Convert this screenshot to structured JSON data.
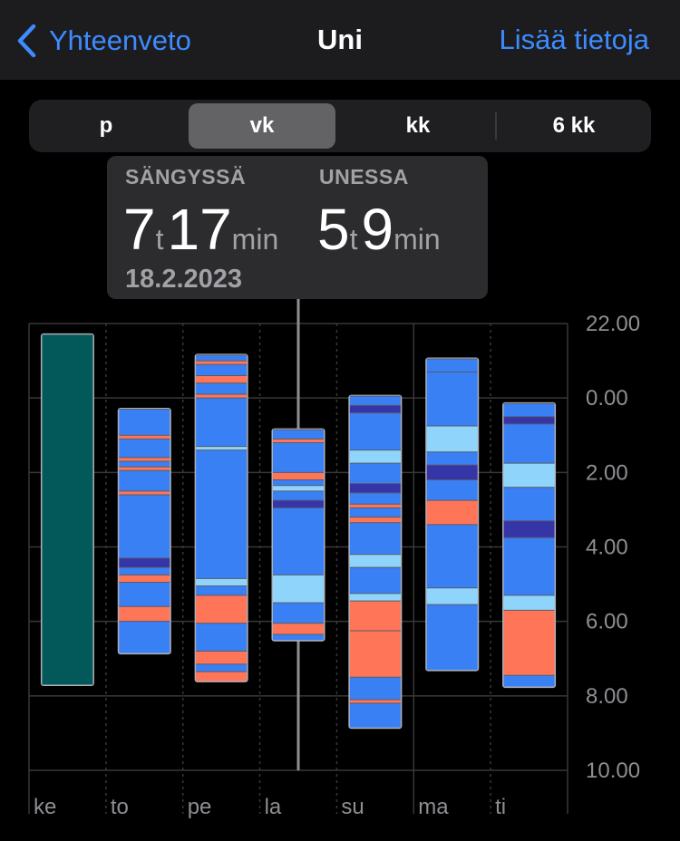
{
  "nav": {
    "back_label": "Yhteenveto",
    "title": "Uni",
    "action_label": "Lisää tietoja"
  },
  "segments": [
    {
      "label": "p",
      "active": false
    },
    {
      "label": "vk",
      "active": true
    },
    {
      "label": "kk",
      "active": false
    },
    {
      "label": "6 kk",
      "active": false
    }
  ],
  "tooltip": {
    "in_bed_label": "SÄNGYSSÄ",
    "in_bed_hours": "7",
    "in_bed_minutes": "17",
    "asleep_label": "UNESSA",
    "asleep_hours": "5",
    "asleep_minutes": "9",
    "hour_unit": "t",
    "minute_unit": "min",
    "date": "18.2.2023"
  },
  "colors": {
    "in_bed": "#03585a",
    "core": "#3a80f5",
    "rem": "#8fd5fb",
    "deep": "#3535a8",
    "awake": "#ff7558",
    "grid": "#38383a",
    "accent": "#3d8bff"
  },
  "chart_data": {
    "type": "range-bar",
    "x_categories": [
      "ke",
      "to",
      "pe",
      "la",
      "su",
      "ma",
      "ti"
    ],
    "y_tick_labels": [
      "22.00",
      "0.00",
      "2.00",
      "4.00",
      "6.00",
      "8.00",
      "10.00"
    ],
    "y_unit": "hours since 22.00",
    "ylim": [
      0,
      12
    ],
    "selected_category": "la",
    "series": [
      {
        "day": "ke",
        "start": 0.3,
        "end": 9.7,
        "stages": [
          {
            "from": 0.3,
            "to": 9.7,
            "stage": "in_bed"
          }
        ]
      },
      {
        "day": "to",
        "start": 2.3,
        "end": 8.85,
        "stages": [
          {
            "from": 2.3,
            "to": 3.0,
            "stage": "core"
          },
          {
            "from": 3.0,
            "to": 3.1,
            "stage": "awake"
          },
          {
            "from": 3.1,
            "to": 3.6,
            "stage": "core"
          },
          {
            "from": 3.6,
            "to": 3.7,
            "stage": "awake"
          },
          {
            "from": 3.7,
            "to": 3.85,
            "stage": "core"
          },
          {
            "from": 3.85,
            "to": 3.95,
            "stage": "awake"
          },
          {
            "from": 3.95,
            "to": 4.5,
            "stage": "core"
          },
          {
            "from": 4.5,
            "to": 4.6,
            "stage": "awake"
          },
          {
            "from": 4.6,
            "to": 6.3,
            "stage": "core"
          },
          {
            "from": 6.3,
            "to": 6.55,
            "stage": "deep"
          },
          {
            "from": 6.55,
            "to": 6.75,
            "stage": "core"
          },
          {
            "from": 6.75,
            "to": 6.95,
            "stage": "awake"
          },
          {
            "from": 6.95,
            "to": 7.6,
            "stage": "core"
          },
          {
            "from": 7.6,
            "to": 8.0,
            "stage": "awake"
          },
          {
            "from": 8.0,
            "to": 8.85,
            "stage": "core"
          }
        ]
      },
      {
        "day": "pe",
        "start": 0.85,
        "end": 9.6,
        "stages": [
          {
            "from": 0.85,
            "to": 1.0,
            "stage": "core"
          },
          {
            "from": 1.0,
            "to": 1.1,
            "stage": "awake"
          },
          {
            "from": 1.1,
            "to": 1.4,
            "stage": "core"
          },
          {
            "from": 1.4,
            "to": 1.6,
            "stage": "awake"
          },
          {
            "from": 1.6,
            "to": 1.9,
            "stage": "core"
          },
          {
            "from": 1.9,
            "to": 2.0,
            "stage": "awake"
          },
          {
            "from": 2.0,
            "to": 3.3,
            "stage": "core"
          },
          {
            "from": 3.3,
            "to": 3.4,
            "stage": "rem"
          },
          {
            "from": 3.4,
            "to": 6.85,
            "stage": "core"
          },
          {
            "from": 6.85,
            "to": 7.05,
            "stage": "rem"
          },
          {
            "from": 7.05,
            "to": 7.3,
            "stage": "core"
          },
          {
            "from": 7.3,
            "to": 8.05,
            "stage": "awake"
          },
          {
            "from": 8.05,
            "to": 8.8,
            "stage": "core"
          },
          {
            "from": 8.8,
            "to": 9.15,
            "stage": "awake"
          },
          {
            "from": 9.15,
            "to": 9.35,
            "stage": "core"
          },
          {
            "from": 9.35,
            "to": 9.6,
            "stage": "awake"
          }
        ]
      },
      {
        "day": "la",
        "start": 2.85,
        "end": 8.5,
        "stages": [
          {
            "from": 2.85,
            "to": 3.1,
            "stage": "core"
          },
          {
            "from": 3.1,
            "to": 3.2,
            "stage": "awake"
          },
          {
            "from": 3.2,
            "to": 4.0,
            "stage": "core"
          },
          {
            "from": 4.0,
            "to": 4.2,
            "stage": "awake"
          },
          {
            "from": 4.2,
            "to": 4.35,
            "stage": "core"
          },
          {
            "from": 4.35,
            "to": 4.5,
            "stage": "rem"
          },
          {
            "from": 4.5,
            "to": 4.75,
            "stage": "core"
          },
          {
            "from": 4.75,
            "to": 4.95,
            "stage": "deep"
          },
          {
            "from": 4.95,
            "to": 6.75,
            "stage": "core"
          },
          {
            "from": 6.75,
            "to": 7.5,
            "stage": "rem"
          },
          {
            "from": 7.5,
            "to": 8.05,
            "stage": "core"
          },
          {
            "from": 8.05,
            "to": 8.35,
            "stage": "awake"
          },
          {
            "from": 8.35,
            "to": 8.5,
            "stage": "core"
          }
        ]
      },
      {
        "day": "su",
        "start": 1.95,
        "end": 10.85,
        "stages": [
          {
            "from": 1.95,
            "to": 2.2,
            "stage": "core"
          },
          {
            "from": 2.2,
            "to": 2.4,
            "stage": "deep"
          },
          {
            "from": 2.4,
            "to": 3.4,
            "stage": "core"
          },
          {
            "from": 3.4,
            "to": 3.75,
            "stage": "rem"
          },
          {
            "from": 3.75,
            "to": 4.3,
            "stage": "core"
          },
          {
            "from": 4.3,
            "to": 4.55,
            "stage": "deep"
          },
          {
            "from": 4.55,
            "to": 4.85,
            "stage": "core"
          },
          {
            "from": 4.85,
            "to": 4.95,
            "stage": "awake"
          },
          {
            "from": 4.95,
            "to": 5.2,
            "stage": "core"
          },
          {
            "from": 5.2,
            "to": 5.35,
            "stage": "awake"
          },
          {
            "from": 5.35,
            "to": 6.2,
            "stage": "core"
          },
          {
            "from": 6.2,
            "to": 6.55,
            "stage": "rem"
          },
          {
            "from": 6.55,
            "to": 7.25,
            "stage": "core"
          },
          {
            "from": 7.25,
            "to": 7.45,
            "stage": "rem"
          },
          {
            "from": 7.45,
            "to": 8.25,
            "stage": "awake"
          },
          {
            "from": 8.25,
            "to": 9.5,
            "stage": "awake"
          },
          {
            "from": 9.5,
            "to": 10.1,
            "stage": "core"
          },
          {
            "from": 10.1,
            "to": 10.2,
            "stage": "awake"
          },
          {
            "from": 10.2,
            "to": 10.85,
            "stage": "core"
          }
        ]
      },
      {
        "day": "ma",
        "start": 0.95,
        "end": 9.3,
        "stages": [
          {
            "from": 0.95,
            "to": 1.3,
            "stage": "core"
          },
          {
            "from": 1.3,
            "to": 2.75,
            "stage": "core"
          },
          {
            "from": 2.75,
            "to": 3.45,
            "stage": "rem"
          },
          {
            "from": 3.45,
            "to": 3.8,
            "stage": "core"
          },
          {
            "from": 3.8,
            "to": 4.2,
            "stage": "deep"
          },
          {
            "from": 4.2,
            "to": 4.75,
            "stage": "core"
          },
          {
            "from": 4.75,
            "to": 5.4,
            "stage": "awake"
          },
          {
            "from": 5.4,
            "to": 7.1,
            "stage": "core"
          },
          {
            "from": 7.1,
            "to": 7.55,
            "stage": "rem"
          },
          {
            "from": 7.55,
            "to": 9.3,
            "stage": "core"
          }
        ]
      },
      {
        "day": "ti",
        "start": 2.15,
        "end": 9.75,
        "stages": [
          {
            "from": 2.15,
            "to": 2.5,
            "stage": "core"
          },
          {
            "from": 2.5,
            "to": 2.7,
            "stage": "deep"
          },
          {
            "from": 2.7,
            "to": 3.75,
            "stage": "core"
          },
          {
            "from": 3.75,
            "to": 4.4,
            "stage": "rem"
          },
          {
            "from": 4.4,
            "to": 5.3,
            "stage": "core"
          },
          {
            "from": 5.3,
            "to": 5.75,
            "stage": "deep"
          },
          {
            "from": 5.75,
            "to": 7.3,
            "stage": "core"
          },
          {
            "from": 7.3,
            "to": 7.7,
            "stage": "rem"
          },
          {
            "from": 7.7,
            "to": 9.45,
            "stage": "awake"
          },
          {
            "from": 9.45,
            "to": 9.75,
            "stage": "core"
          }
        ]
      }
    ]
  }
}
